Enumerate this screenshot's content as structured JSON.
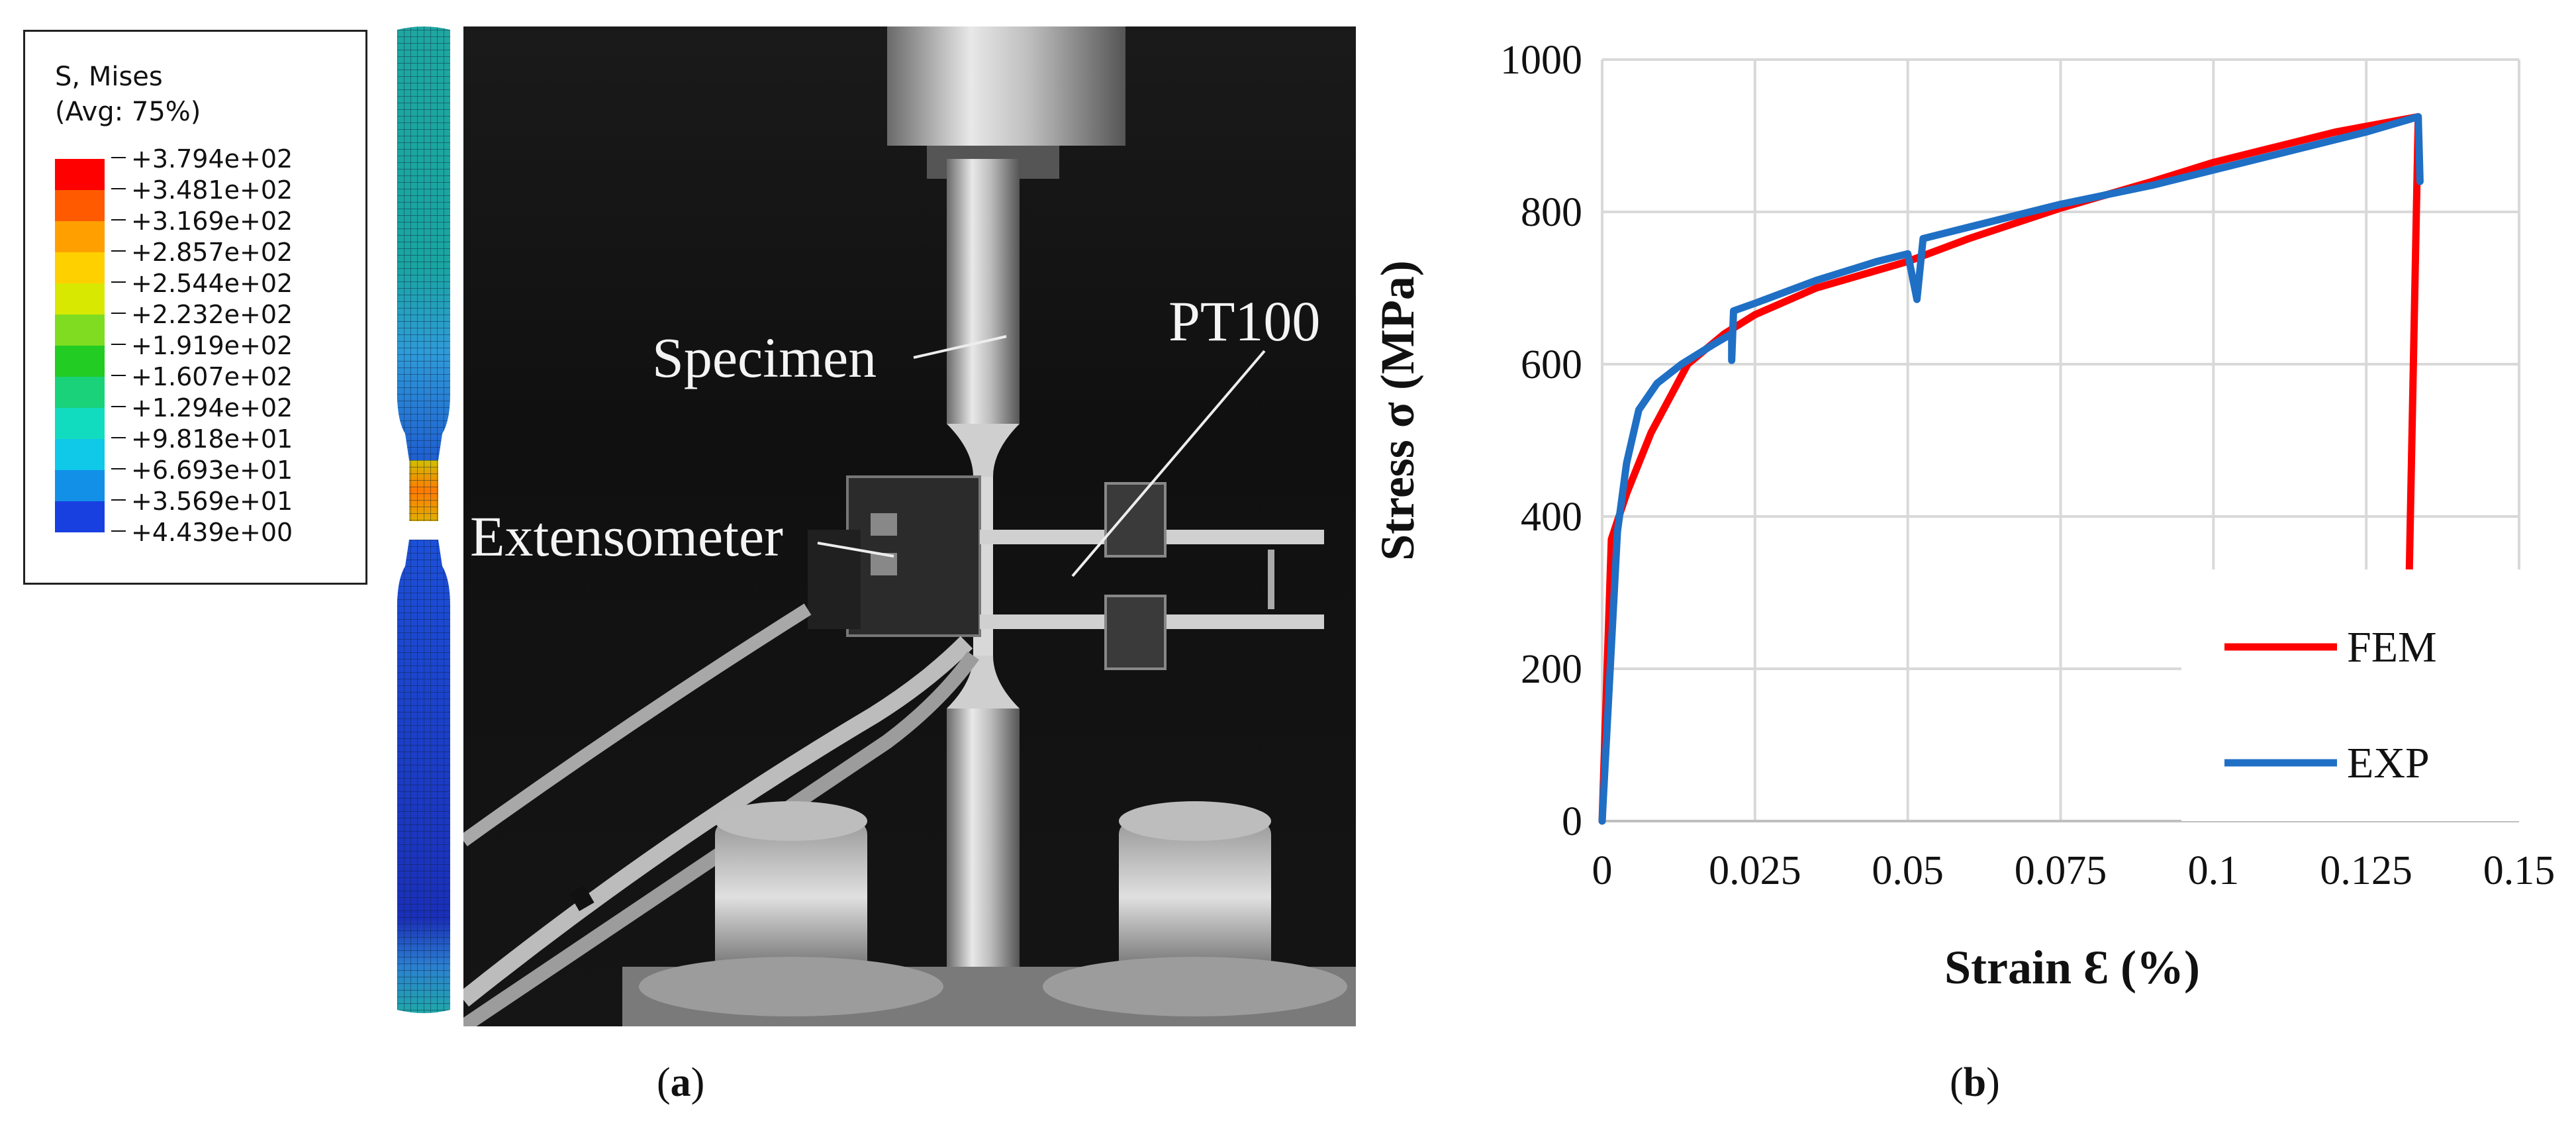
{
  "figure": {
    "caption_a": "a",
    "caption_b": "b",
    "panel_a": {
      "legend": {
        "title": "S, Mises",
        "subtitle": "(Avg: 75%)",
        "levels": [
          "+3.794e+02",
          "+3.481e+02",
          "+3.169e+02",
          "+2.857e+02",
          "+2.544e+02",
          "+2.232e+02",
          "+1.919e+02",
          "+1.607e+02",
          "+1.294e+02",
          "+9.818e+01",
          "+6.693e+01",
          "+3.569e+01",
          "+4.439e+00"
        ],
        "colors": [
          "#ff0000",
          "#ff5a00",
          "#ffa000",
          "#ffd000",
          "#d8e800",
          "#7fdc20",
          "#22cc22",
          "#19d27a",
          "#12dcc0",
          "#10c8e8",
          "#1290e8",
          "#1840e0",
          "#1010e0"
        ]
      },
      "photo_labels": {
        "specimen": "Specimen",
        "pt100": "PT100",
        "extensometer": "Extensometer"
      }
    }
  },
  "chart_data": {
    "type": "line",
    "xlabel": "Strain Ɛ (%)",
    "ylabel": "Stress σ (MPa)",
    "xlim": [
      0,
      0.15
    ],
    "ylim": [
      0,
      1000
    ],
    "x_ticks": [
      "0",
      "0.025",
      "0.05",
      "0.075",
      "0.1",
      "0.125",
      "0.15"
    ],
    "y_ticks": [
      "0",
      "200",
      "400",
      "600",
      "800",
      "1000"
    ],
    "grid": true,
    "legend_position": "bottom-right",
    "series": [
      {
        "name": "FEM",
        "color": "#ff0000",
        "points": [
          [
            0,
            0
          ],
          [
            0.0015,
            370
          ],
          [
            0.004,
            430
          ],
          [
            0.008,
            510
          ],
          [
            0.014,
            600
          ],
          [
            0.02,
            640
          ],
          [
            0.025,
            665
          ],
          [
            0.035,
            700
          ],
          [
            0.05,
            735
          ],
          [
            0.06,
            765
          ],
          [
            0.075,
            805
          ],
          [
            0.09,
            840
          ],
          [
            0.1,
            865
          ],
          [
            0.11,
            885
          ],
          [
            0.12,
            905
          ],
          [
            0.1335,
            925
          ],
          [
            0.132,
            310
          ]
        ]
      },
      {
        "name": "EXP",
        "color": "#1f6fc5",
        "points": [
          [
            0,
            0
          ],
          [
            0.0025,
            380
          ],
          [
            0.004,
            470
          ],
          [
            0.006,
            540
          ],
          [
            0.009,
            575
          ],
          [
            0.013,
            600
          ],
          [
            0.018,
            625
          ],
          [
            0.0212,
            640
          ],
          [
            0.0212,
            605
          ],
          [
            0.0215,
            670
          ],
          [
            0.025,
            680
          ],
          [
            0.035,
            710
          ],
          [
            0.045,
            735
          ],
          [
            0.05,
            745
          ],
          [
            0.0515,
            685
          ],
          [
            0.0525,
            765
          ],
          [
            0.06,
            780
          ],
          [
            0.075,
            810
          ],
          [
            0.09,
            835
          ],
          [
            0.1,
            855
          ],
          [
            0.11,
            875
          ],
          [
            0.125,
            905
          ],
          [
            0.1335,
            925
          ],
          [
            0.1338,
            840
          ]
        ]
      }
    ]
  }
}
